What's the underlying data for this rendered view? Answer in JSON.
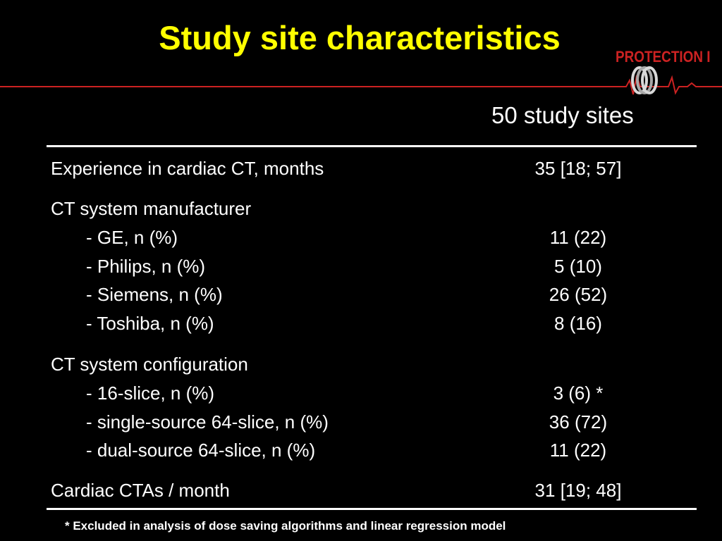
{
  "slide": {
    "title": "Study site characteristics",
    "logo_text": "PROTECTION I",
    "column_header": "50 study sites",
    "rows": [
      {
        "label": "Experience in cardiac CT, months",
        "value": "35 [18; 57]"
      },
      {
        "label": "CT system manufacturer",
        "value": ""
      },
      {
        "label": "- GE, n (%)",
        "value": "11 (22)"
      },
      {
        "label": "- Philips, n (%)",
        "value": "5 (10)"
      },
      {
        "label": "- Siemens, n (%)",
        "value": "26 (52)"
      },
      {
        "label": "- Toshiba, n (%)",
        "value": "8 (16)"
      },
      {
        "label": "CT system configuration",
        "value": ""
      },
      {
        "label": "- 16-slice, n (%)",
        "value": "3 (6) *"
      },
      {
        "label": "- single-source 64-slice, n (%)",
        "value": "36 (72)"
      },
      {
        "label": "- dual-source 64-slice, n (%)",
        "value": "11 (22)"
      },
      {
        "label": "Cardiac CTAs / month",
        "value": "31 [19; 48]"
      }
    ],
    "footnote": "* Excluded in analysis of dose saving algorithms and linear regression model"
  },
  "colors": {
    "title": "#ffff00",
    "logo": "#cc2222",
    "text": "#ffffff",
    "background": "#000000"
  }
}
